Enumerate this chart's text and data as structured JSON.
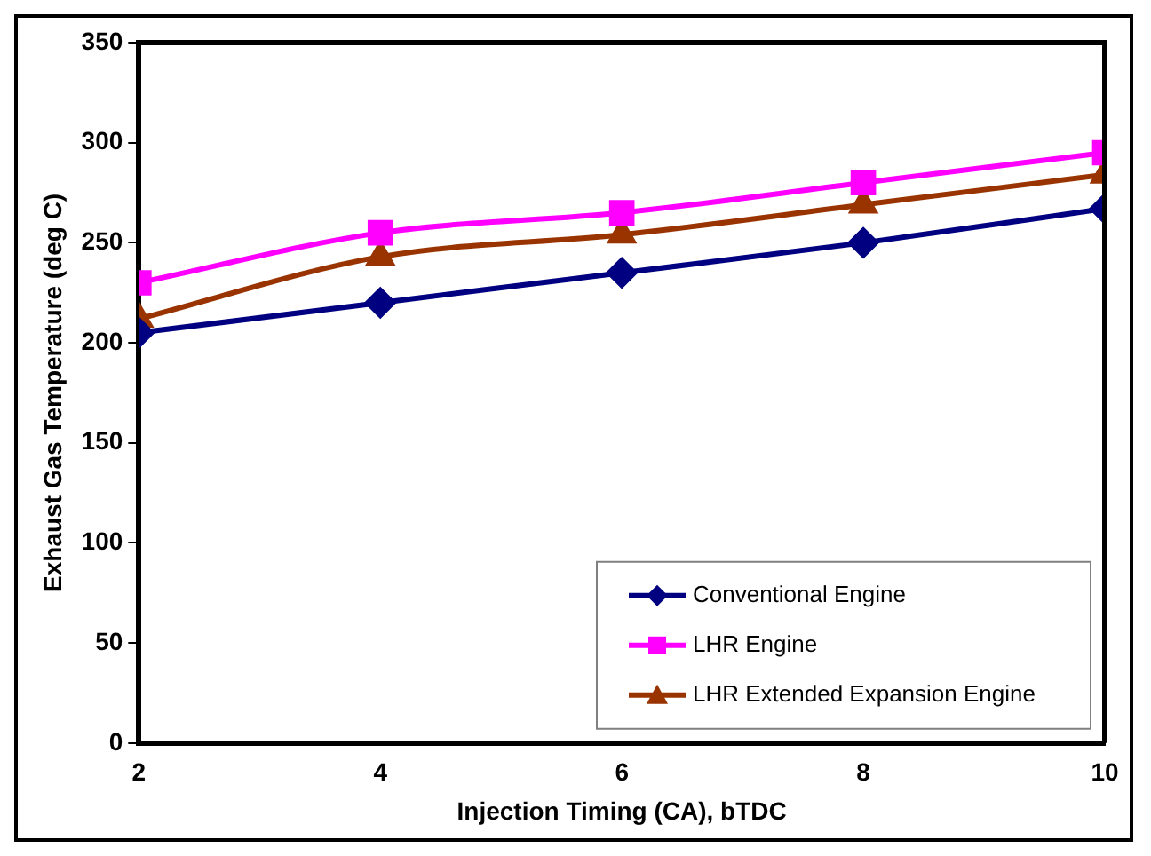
{
  "chart_data": {
    "type": "line",
    "xlabel": "Injection Timing (CA), bTDC",
    "ylabel": "Exhaust Gas Temperature (deg C)",
    "x": [
      2,
      4,
      6,
      8,
      10
    ],
    "xlim": [
      2,
      10
    ],
    "xticks": [
      2,
      4,
      6,
      8,
      10
    ],
    "ylim": [
      0,
      350
    ],
    "yticks": [
      0,
      50,
      100,
      150,
      200,
      250,
      300,
      350
    ],
    "grid": false,
    "legend": "bottom right",
    "line_style": "solid",
    "series": [
      {
        "name": "Conventional Engine",
        "color": "#000080",
        "marker": "diamond",
        "values": [
          205,
          220,
          235,
          250,
          267
        ]
      },
      {
        "name": "LHR Engine",
        "color": "#ff00ff",
        "marker": "square",
        "values": [
          230,
          255,
          265,
          280,
          295
        ]
      },
      {
        "name": "LHR Extended Expansion Engine",
        "color": "#993300",
        "marker": "triangle",
        "values": [
          212,
          243,
          254,
          269,
          284
        ]
      }
    ]
  }
}
